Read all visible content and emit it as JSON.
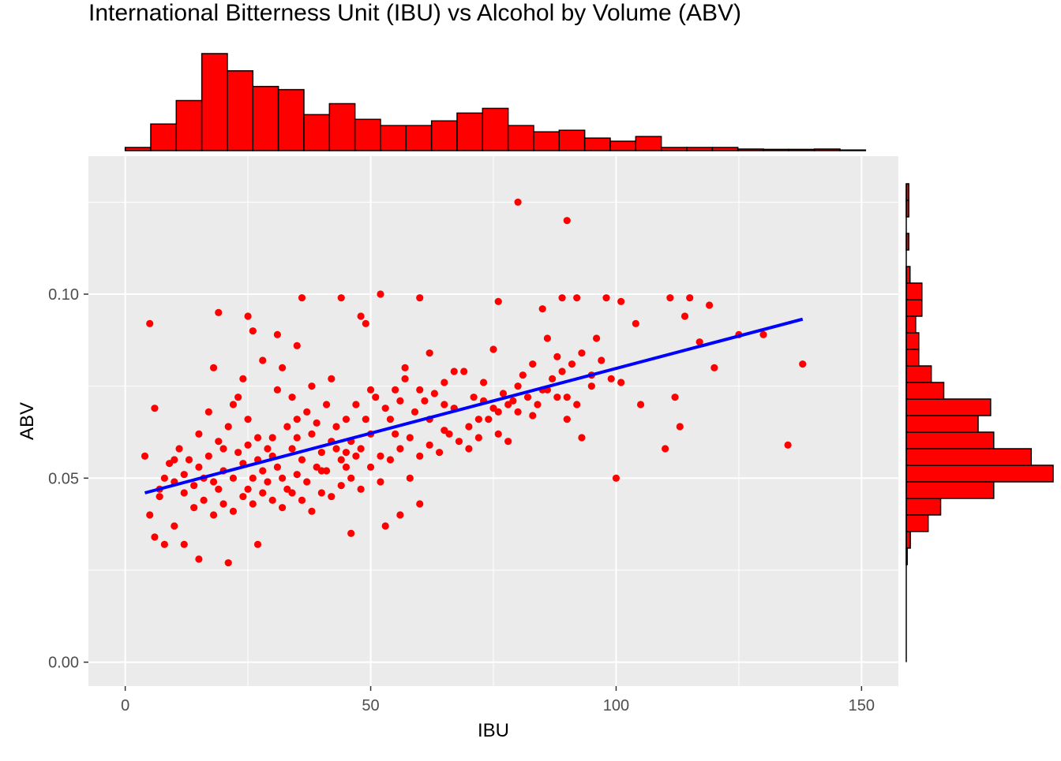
{
  "chart_data": {
    "type": "scatter",
    "title": "International Bitterness Unit (IBU) vs Alcohol by Volume (ABV)",
    "xlabel": "IBU",
    "ylabel": "ABV",
    "xlim": [
      -7.5,
      157.5
    ],
    "ylim": [
      -0.0065,
      0.1375
    ],
    "x_ticks": [
      0,
      50,
      100,
      150
    ],
    "x_tick_labels": [
      "0",
      "50",
      "100",
      "150"
    ],
    "y_ticks": [
      0.0,
      0.05,
      0.1
    ],
    "y_tick_labels": [
      "0.00",
      "0.05",
      "0.10"
    ],
    "grid": true,
    "legend": "none",
    "point_color": "#ff0000",
    "trend_color": "#0000ff",
    "background": "#ebebeb",
    "trend_line": {
      "type": "linear",
      "x": [
        4,
        138
      ],
      "y": [
        0.046,
        0.0932
      ]
    },
    "points_estimated": [
      [
        4,
        0.056
      ],
      [
        5,
        0.092
      ],
      [
        6,
        0.069
      ],
      [
        7,
        0.047
      ],
      [
        5,
        0.04
      ],
      [
        6,
        0.034
      ],
      [
        8,
        0.032
      ],
      [
        10,
        0.037
      ],
      [
        12,
        0.032
      ],
      [
        15,
        0.028
      ],
      [
        21,
        0.027
      ],
      [
        27,
        0.032
      ],
      [
        46,
        0.035
      ],
      [
        53,
        0.037
      ],
      [
        56,
        0.04
      ],
      [
        60,
        0.043
      ],
      [
        100,
        0.05
      ],
      [
        80,
        0.125
      ],
      [
        90,
        0.12
      ],
      [
        135,
        0.059
      ],
      [
        138,
        0.081
      ],
      [
        130,
        0.089
      ],
      [
        125,
        0.089
      ],
      [
        120,
        0.08
      ],
      [
        119,
        0.097
      ],
      [
        115,
        0.099
      ],
      [
        111,
        0.099
      ],
      [
        52,
        0.1
      ],
      [
        60,
        0.099
      ],
      [
        36,
        0.099
      ],
      [
        44,
        0.099
      ],
      [
        19,
        0.095
      ],
      [
        25,
        0.094
      ],
      [
        26,
        0.09
      ],
      [
        31,
        0.089
      ],
      [
        35,
        0.086
      ],
      [
        48,
        0.094
      ],
      [
        49,
        0.092
      ],
      [
        62,
        0.084
      ],
      [
        75,
        0.085
      ],
      [
        76,
        0.098
      ],
      [
        85,
        0.096
      ],
      [
        89,
        0.099
      ],
      [
        92,
        0.099
      ],
      [
        98,
        0.099
      ],
      [
        101,
        0.098
      ],
      [
        104,
        0.092
      ],
      [
        114,
        0.094
      ],
      [
        117,
        0.087
      ],
      [
        112,
        0.072
      ],
      [
        113,
        0.064
      ],
      [
        110,
        0.058
      ],
      [
        105,
        0.07
      ],
      [
        101,
        0.076
      ],
      [
        96,
        0.088
      ],
      [
        95,
        0.075
      ],
      [
        93,
        0.061
      ],
      [
        90,
        0.072
      ],
      [
        88,
        0.083
      ],
      [
        86,
        0.088
      ],
      [
        83,
        0.067
      ],
      [
        80,
        0.075
      ],
      [
        78,
        0.06
      ],
      [
        76,
        0.062
      ],
      [
        73,
        0.071
      ],
      [
        72,
        0.066
      ],
      [
        70,
        0.058
      ],
      [
        67,
        0.079
      ],
      [
        65,
        0.063
      ],
      [
        62,
        0.066
      ],
      [
        60,
        0.074
      ],
      [
        58,
        0.061
      ],
      [
        56,
        0.071
      ],
      [
        54,
        0.066
      ],
      [
        52,
        0.056
      ],
      [
        50,
        0.062
      ],
      [
        48,
        0.058
      ],
      [
        46,
        0.06
      ],
      [
        44,
        0.055
      ],
      [
        42,
        0.06
      ],
      [
        40,
        0.057
      ],
      [
        38,
        0.062
      ],
      [
        36,
        0.055
      ],
      [
        34,
        0.058
      ],
      [
        32,
        0.05
      ],
      [
        30,
        0.056
      ],
      [
        28,
        0.052
      ],
      [
        26,
        0.05
      ],
      [
        24,
        0.054
      ],
      [
        22,
        0.05
      ],
      [
        20,
        0.052
      ],
      [
        18,
        0.049
      ],
      [
        16,
        0.05
      ],
      [
        14,
        0.048
      ],
      [
        12,
        0.051
      ],
      [
        10,
        0.049
      ],
      [
        9,
        0.054
      ],
      [
        8,
        0.05
      ],
      [
        7,
        0.045
      ],
      [
        11,
        0.058
      ],
      [
        13,
        0.055
      ],
      [
        15,
        0.062
      ],
      [
        17,
        0.068
      ],
      [
        19,
        0.06
      ],
      [
        21,
        0.064
      ],
      [
        23,
        0.072
      ],
      [
        25,
        0.066
      ],
      [
        27,
        0.061
      ],
      [
        29,
        0.058
      ],
      [
        31,
        0.074
      ],
      [
        33,
        0.064
      ],
      [
        35,
        0.061
      ],
      [
        37,
        0.068
      ],
      [
        39,
        0.065
      ],
      [
        41,
        0.07
      ],
      [
        43,
        0.064
      ],
      [
        45,
        0.066
      ],
      [
        47,
        0.07
      ],
      [
        49,
        0.066
      ],
      [
        51,
        0.072
      ],
      [
        53,
        0.069
      ],
      [
        55,
        0.074
      ],
      [
        57,
        0.077
      ],
      [
        59,
        0.068
      ],
      [
        61,
        0.071
      ],
      [
        63,
        0.073
      ],
      [
        65,
        0.076
      ],
      [
        67,
        0.069
      ],
      [
        69,
        0.079
      ],
      [
        71,
        0.072
      ],
      [
        73,
        0.076
      ],
      [
        75,
        0.069
      ],
      [
        77,
        0.073
      ],
      [
        79,
        0.071
      ],
      [
        81,
        0.078
      ],
      [
        83,
        0.081
      ],
      [
        85,
        0.074
      ],
      [
        87,
        0.077
      ],
      [
        89,
        0.079
      ],
      [
        91,
        0.081
      ],
      [
        93,
        0.084
      ],
      [
        95,
        0.078
      ],
      [
        97,
        0.082
      ],
      [
        99,
        0.077
      ],
      [
        14,
        0.042
      ],
      [
        16,
        0.044
      ],
      [
        18,
        0.04
      ],
      [
        20,
        0.043
      ],
      [
        22,
        0.041
      ],
      [
        24,
        0.045
      ],
      [
        26,
        0.043
      ],
      [
        28,
        0.046
      ],
      [
        30,
        0.044
      ],
      [
        32,
        0.042
      ],
      [
        34,
        0.046
      ],
      [
        36,
        0.044
      ],
      [
        38,
        0.041
      ],
      [
        40,
        0.046
      ],
      [
        42,
        0.045
      ],
      [
        44,
        0.048
      ],
      [
        46,
        0.05
      ],
      [
        48,
        0.047
      ],
      [
        50,
        0.053
      ],
      [
        52,
        0.049
      ],
      [
        54,
        0.055
      ],
      [
        56,
        0.058
      ],
      [
        58,
        0.05
      ],
      [
        60,
        0.056
      ],
      [
        62,
        0.059
      ],
      [
        64,
        0.057
      ],
      [
        66,
        0.062
      ],
      [
        68,
        0.06
      ],
      [
        70,
        0.064
      ],
      [
        72,
        0.061
      ],
      [
        74,
        0.066
      ],
      [
        76,
        0.068
      ],
      [
        78,
        0.07
      ],
      [
        80,
        0.068
      ],
      [
        82,
        0.072
      ],
      [
        84,
        0.07
      ],
      [
        86,
        0.074
      ],
      [
        88,
        0.072
      ],
      [
        90,
        0.066
      ],
      [
        92,
        0.07
      ],
      [
        10,
        0.055
      ],
      [
        12,
        0.046
      ],
      [
        17,
        0.056
      ],
      [
        19,
        0.047
      ],
      [
        23,
        0.057
      ],
      [
        25,
        0.047
      ],
      [
        27,
        0.055
      ],
      [
        29,
        0.049
      ],
      [
        31,
        0.053
      ],
      [
        33,
        0.047
      ],
      [
        35,
        0.051
      ],
      [
        37,
        0.049
      ],
      [
        39,
        0.053
      ],
      [
        41,
        0.052
      ],
      [
        43,
        0.058
      ],
      [
        45,
        0.053
      ],
      [
        47,
        0.056
      ],
      [
        15,
        0.053
      ],
      [
        20,
        0.058
      ],
      [
        25,
        0.059
      ],
      [
        30,
        0.061
      ],
      [
        35,
        0.066
      ],
      [
        40,
        0.052
      ],
      [
        45,
        0.057
      ],
      [
        55,
        0.062
      ],
      [
        65,
        0.07
      ],
      [
        28,
        0.082
      ],
      [
        32,
        0.08
      ],
      [
        38,
        0.075
      ],
      [
        42,
        0.077
      ],
      [
        18,
        0.08
      ],
      [
        22,
        0.07
      ],
      [
        24,
        0.077
      ],
      [
        34,
        0.072
      ],
      [
        50,
        0.074
      ],
      [
        57,
        0.08
      ]
    ],
    "top_histogram": {
      "variable": "IBU",
      "bin_width": 5.2,
      "bin_start": 0,
      "counts": [
        2,
        17,
        32,
        62,
        51,
        41,
        39,
        23,
        30,
        20,
        16,
        16,
        19,
        24,
        27,
        16,
        12,
        13,
        8,
        6,
        9,
        2,
        2,
        2,
        1,
        0.8,
        0.8,
        1,
        0.4
      ]
    },
    "right_histogram": {
      "variable": "ABV",
      "bin_width": 0.0045,
      "bin_start": 0.0265,
      "counts": [
        0.3,
        1.3,
        7,
        11,
        28,
        47,
        40,
        28,
        23,
        27,
        12,
        8,
        4,
        4,
        3,
        5,
        5,
        1.2,
        0,
        0.8,
        0,
        0.8,
        0.8
      ]
    }
  }
}
